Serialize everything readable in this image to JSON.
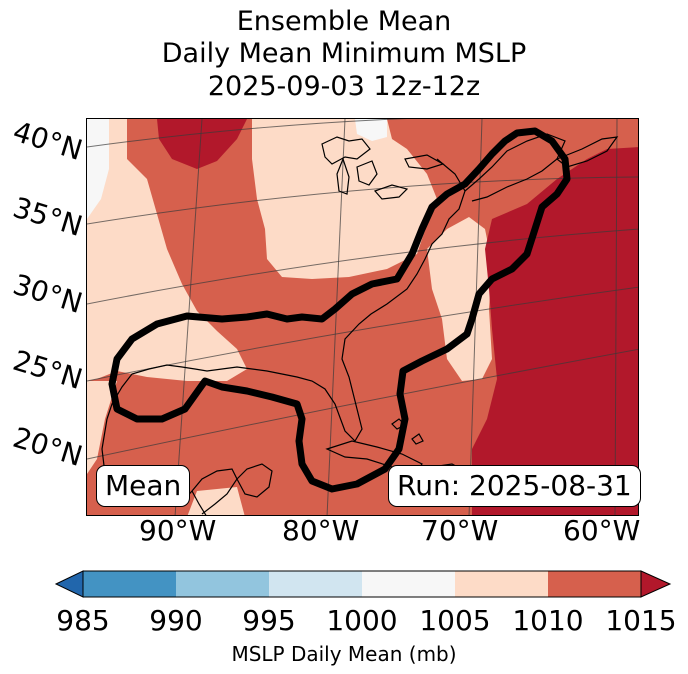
{
  "title": {
    "line1": "Ensemble Mean",
    "line2": "Daily Mean Minimum MSLP",
    "line3": "2025-09-03 12z-12z"
  },
  "map": {
    "lat_labels": [
      "40°N",
      "35°N",
      "30°N",
      "25°N",
      "20°N"
    ],
    "lon_labels": [
      "90°W",
      "80°W",
      "70°W",
      "60°W"
    ],
    "mean_box": "Mean",
    "run_box": "Run: 2025-08-31"
  },
  "colorbar": {
    "ticks": [
      "985",
      "990",
      "995",
      "1000",
      "1005",
      "1010",
      "1015"
    ],
    "label": "MSLP Daily Mean (mb)",
    "colors": [
      "#2166ac",
      "#4393c3",
      "#92c5de",
      "#d1e5f0",
      "#f7f7f7",
      "#fddbc7",
      "#d6604d",
      "#b2182b"
    ]
  }
}
